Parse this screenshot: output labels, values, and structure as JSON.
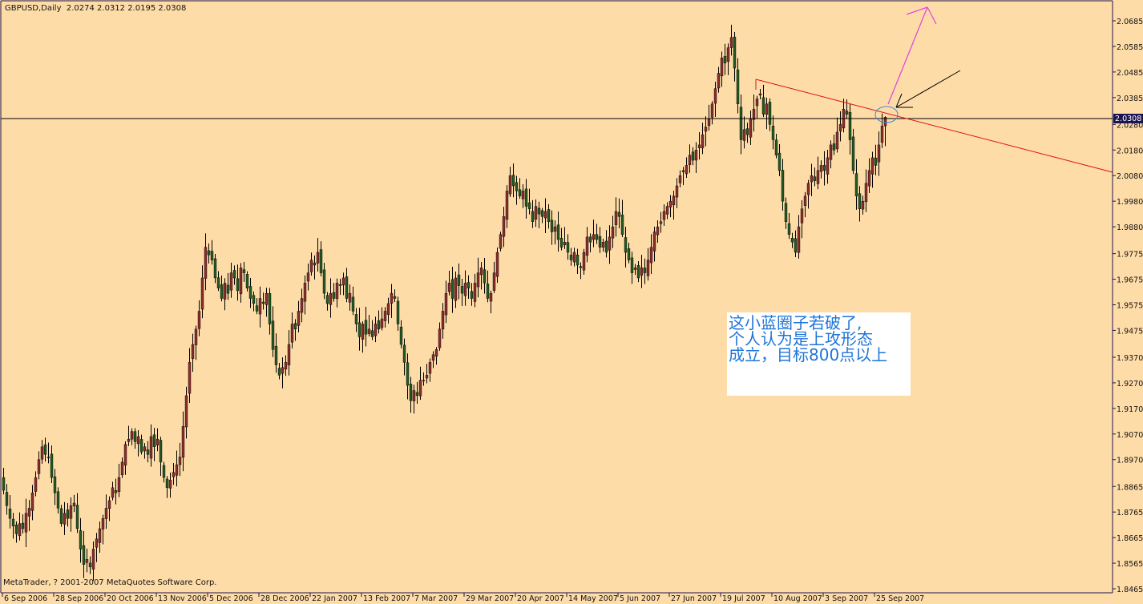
{
  "header": {
    "symbol_timeframe": "GBPUSD,Daily",
    "ohlc_readout": "2.0274 2.0312 2.0195 2.0308"
  },
  "footer": {
    "copyright": "MetaTrader, ? 2001-2007 MetaQuotes Software Corp."
  },
  "annotation": {
    "lines": [
      "这小蓝圈子若破了,",
      "个人认为是上攻形态",
      "成立，目标800点以上"
    ]
  },
  "colors": {
    "background": "#FEDCA8",
    "bull_candle": "#8B2E2E",
    "bear_candle": "#245A24",
    "trendline": "#E01010",
    "target_arrow": "#E040E0",
    "circle": "#3A8AD8",
    "note_text": "#1E74D8",
    "price_label_bg": "#1C1450"
  },
  "chart_data": {
    "type": "candlestick",
    "symbol": "GBPUSD",
    "timeframe": "Daily",
    "last_bar": {
      "open": 2.0274,
      "high": 2.0312,
      "low": 2.0195,
      "close": 2.0308
    },
    "current_price_label": "2.0308",
    "ylim": [
      1.8465,
      2.0685
    ],
    "y_ticks": [
      "2.0685",
      "2.0585",
      "2.0485",
      "2.0385",
      "2.0280",
      "2.0180",
      "2.0080",
      "1.9980",
      "1.9880",
      "1.9775",
      "1.9675",
      "1.9575",
      "1.9475",
      "1.9370",
      "1.9270",
      "1.9170",
      "1.9070",
      "1.8970",
      "1.8865",
      "1.8765",
      "1.8665",
      "1.8565",
      "1.8465"
    ],
    "x_ticks": [
      "6 Sep 2006",
      "28 Sep 2006",
      "20 Oct 2006",
      "13 Nov 2006",
      "5 Dec 2006",
      "28 Dec 2006",
      "22 Jan 2007",
      "13 Feb 2007",
      "7 Mar 2007",
      "29 Mar 2007",
      "20 Apr 2007",
      "14 May 2007",
      "5 Jun 2007",
      "27 Jun 2007",
      "19 Jul 2007",
      "10 Aug 2007",
      "3 Sep 2007",
      "25 Sep 2007"
    ],
    "closes": [
      1.885,
      1.879,
      1.874,
      1.871,
      1.868,
      1.872,
      1.87,
      1.876,
      1.878,
      1.884,
      1.89,
      1.897,
      1.902,
      1.899,
      1.898,
      1.89,
      1.884,
      1.878,
      1.872,
      1.876,
      1.874,
      1.879,
      1.88,
      1.87,
      1.862,
      1.856,
      1.858,
      1.855,
      1.862,
      1.866,
      1.87,
      1.874,
      1.878,
      1.881,
      1.886,
      1.884,
      1.89,
      1.896,
      1.903,
      1.905,
      1.908,
      1.904,
      1.906,
      1.9,
      1.902,
      1.899,
      1.906,
      1.902,
      1.905,
      1.896,
      1.89,
      1.886,
      1.889,
      1.892,
      1.895,
      1.898,
      1.91,
      1.922,
      1.935,
      1.942,
      1.948,
      1.955,
      1.968,
      1.98,
      1.977,
      1.975,
      1.968,
      1.964,
      1.96,
      1.966,
      1.962,
      1.97,
      1.968,
      1.963,
      1.972,
      1.97,
      1.964,
      1.96,
      1.958,
      1.955,
      1.96,
      1.958,
      1.962,
      1.95,
      1.94,
      1.934,
      1.93,
      1.933,
      1.935,
      1.942,
      1.95,
      1.948,
      1.955,
      1.96,
      1.966,
      1.97,
      1.975,
      1.973,
      1.978,
      1.97,
      1.962,
      1.958,
      1.962,
      1.96,
      1.966,
      1.965,
      1.968,
      1.96,
      1.962,
      1.955,
      1.95,
      1.945,
      1.95,
      1.946,
      1.948,
      1.945,
      1.95,
      1.948,
      1.952,
      1.955,
      1.958,
      1.962,
      1.96,
      1.95,
      1.942,
      1.935,
      1.926,
      1.92,
      1.924,
      1.922,
      1.928,
      1.928,
      1.93,
      1.935,
      1.938,
      1.94,
      1.948,
      1.955,
      1.962,
      1.966,
      1.96,
      1.968,
      1.965,
      1.962,
      1.966,
      1.964,
      1.96,
      1.966,
      1.97,
      1.972,
      1.966,
      1.96,
      1.962,
      1.97,
      1.978,
      1.985,
      1.992,
      2.002,
      2.008,
      2.004,
      2.002,
      2.0,
      2.002,
      1.996,
      1.995,
      1.99,
      1.996,
      1.993,
      1.992,
      1.994,
      1.99,
      1.986,
      1.988,
      1.983,
      1.98,
      1.982,
      1.978,
      1.975,
      1.978,
      1.973,
      1.972,
      1.978,
      1.984,
      1.982,
      1.985,
      1.983,
      1.98,
      1.982,
      1.978,
      1.984,
      1.988,
      1.994,
      1.992,
      1.985,
      1.978,
      1.975,
      1.97,
      1.972,
      1.968,
      1.972,
      1.97,
      1.975,
      1.98,
      1.986,
      1.988,
      1.99,
      1.994,
      1.996,
      1.998,
      2.0,
      2.004,
      2.008,
      2.01,
      2.012,
      2.016,
      2.014,
      2.018,
      2.02,
      2.024,
      2.027,
      2.03,
      2.036,
      2.042,
      2.048,
      2.054,
      2.052,
      2.058,
      2.062,
      2.05,
      2.036,
      2.022,
      2.026,
      2.024,
      2.03,
      2.034,
      2.038,
      2.04,
      2.032,
      2.036,
      2.028,
      2.022,
      2.016,
      2.01,
      1.998,
      1.99,
      1.985,
      1.982,
      1.978,
      1.988,
      1.995,
      2.0,
      2.005,
      2.008,
      2.006,
      2.01,
      2.012,
      2.01,
      2.015,
      2.02,
      2.018,
      2.025,
      2.028,
      2.034,
      2.032,
      2.022,
      2.01,
      2.0,
      1.995,
      1.998,
      2.005,
      2.01,
      2.015,
      2.012,
      2.02,
      2.0274,
      2.0308
    ]
  }
}
